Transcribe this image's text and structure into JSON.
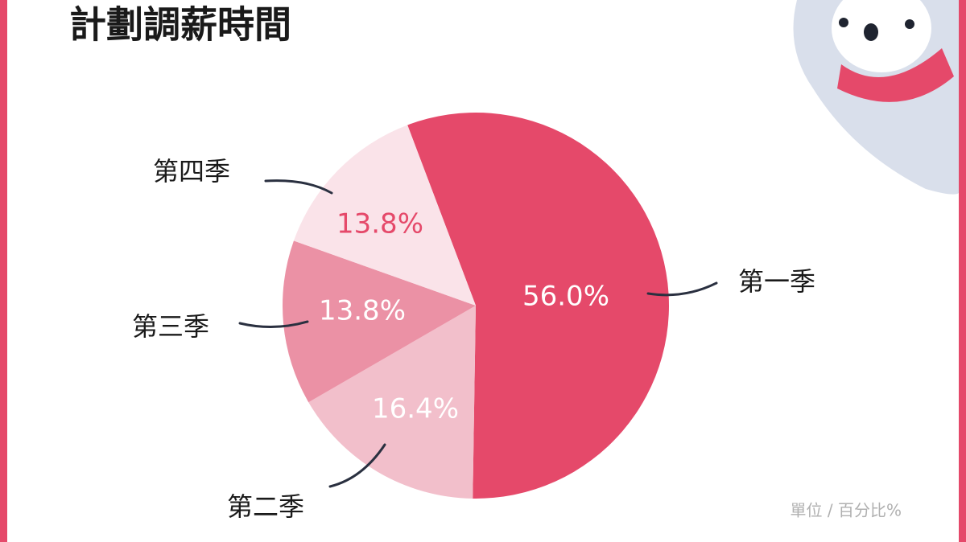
{
  "chart_data": {
    "type": "pie",
    "title": "計劃調薪時間",
    "categories": [
      "第一季",
      "第二季",
      "第三季",
      "第四季"
    ],
    "values": [
      56.0,
      16.4,
      13.8,
      13.8
    ],
    "value_labels": [
      "56.0%",
      "16.4%",
      "13.8%",
      "13.8%"
    ],
    "colors": [
      "#e5496a",
      "#f2bfcb",
      "#eb91a5",
      "#fae3e9"
    ],
    "label_colors": [
      "#ffffff",
      "#ffffff",
      "#ffffff",
      "#e5496a"
    ],
    "note": "單位 / 百分比%"
  }
}
